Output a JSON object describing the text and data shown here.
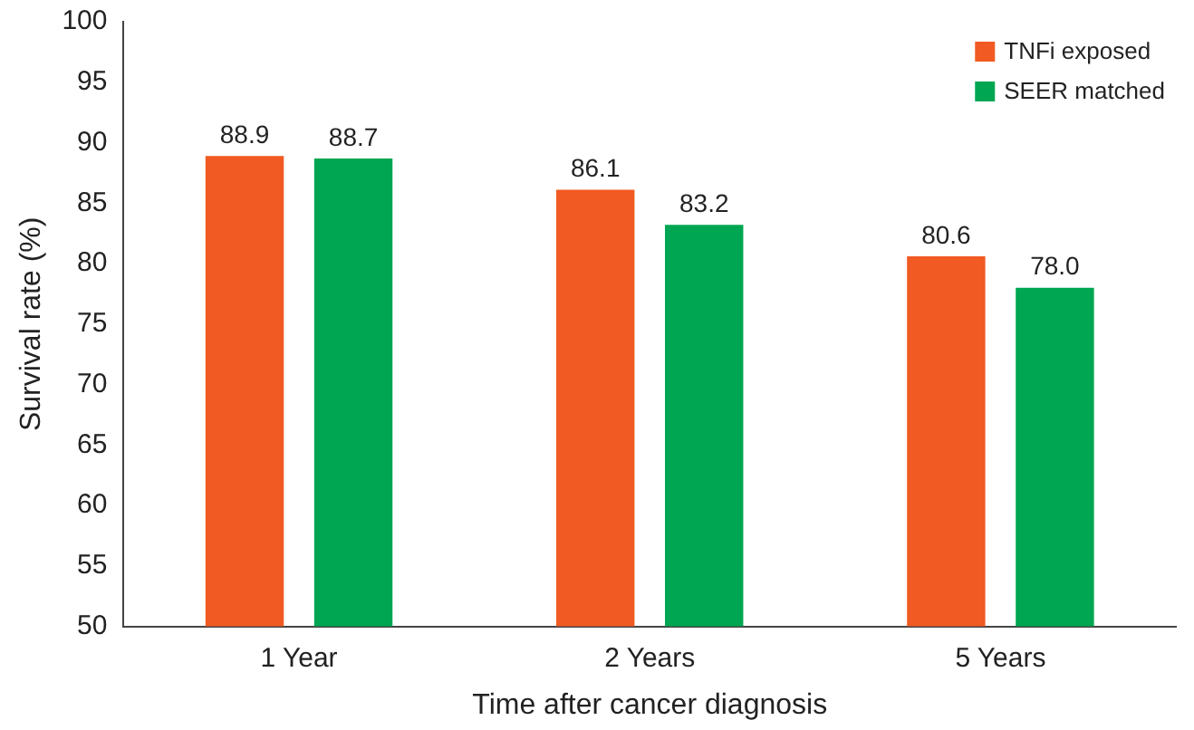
{
  "chart_data": {
    "type": "bar",
    "xlabel": "Time after cancer diagnosis",
    "ylabel": "Survival rate (%)",
    "categories": [
      "1 Year",
      "2 Years",
      "5 Years"
    ],
    "series": [
      {
        "name": "TNFi exposed",
        "color": "#f15a22",
        "values": [
          88.9,
          86.1,
          80.6
        ],
        "value_labels": [
          "88.9",
          "86.1",
          "80.6"
        ]
      },
      {
        "name": "SEER matched",
        "color": "#00a651",
        "values": [
          88.7,
          83.2,
          78.0
        ],
        "value_labels": [
          "88.7",
          "83.2",
          "78.0"
        ]
      }
    ],
    "ylim": [
      50,
      100
    ],
    "yticks": [
      50,
      55,
      60,
      65,
      70,
      75,
      80,
      85,
      90,
      95,
      100
    ],
    "grid": false,
    "legend": "top right"
  }
}
